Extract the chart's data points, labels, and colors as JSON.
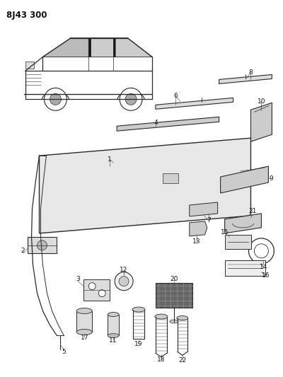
{
  "title": "8J43 300",
  "bg_color": "#ffffff",
  "lc": "#2a2a2a",
  "fig_width": 4.0,
  "fig_height": 5.33,
  "dpi": 100
}
